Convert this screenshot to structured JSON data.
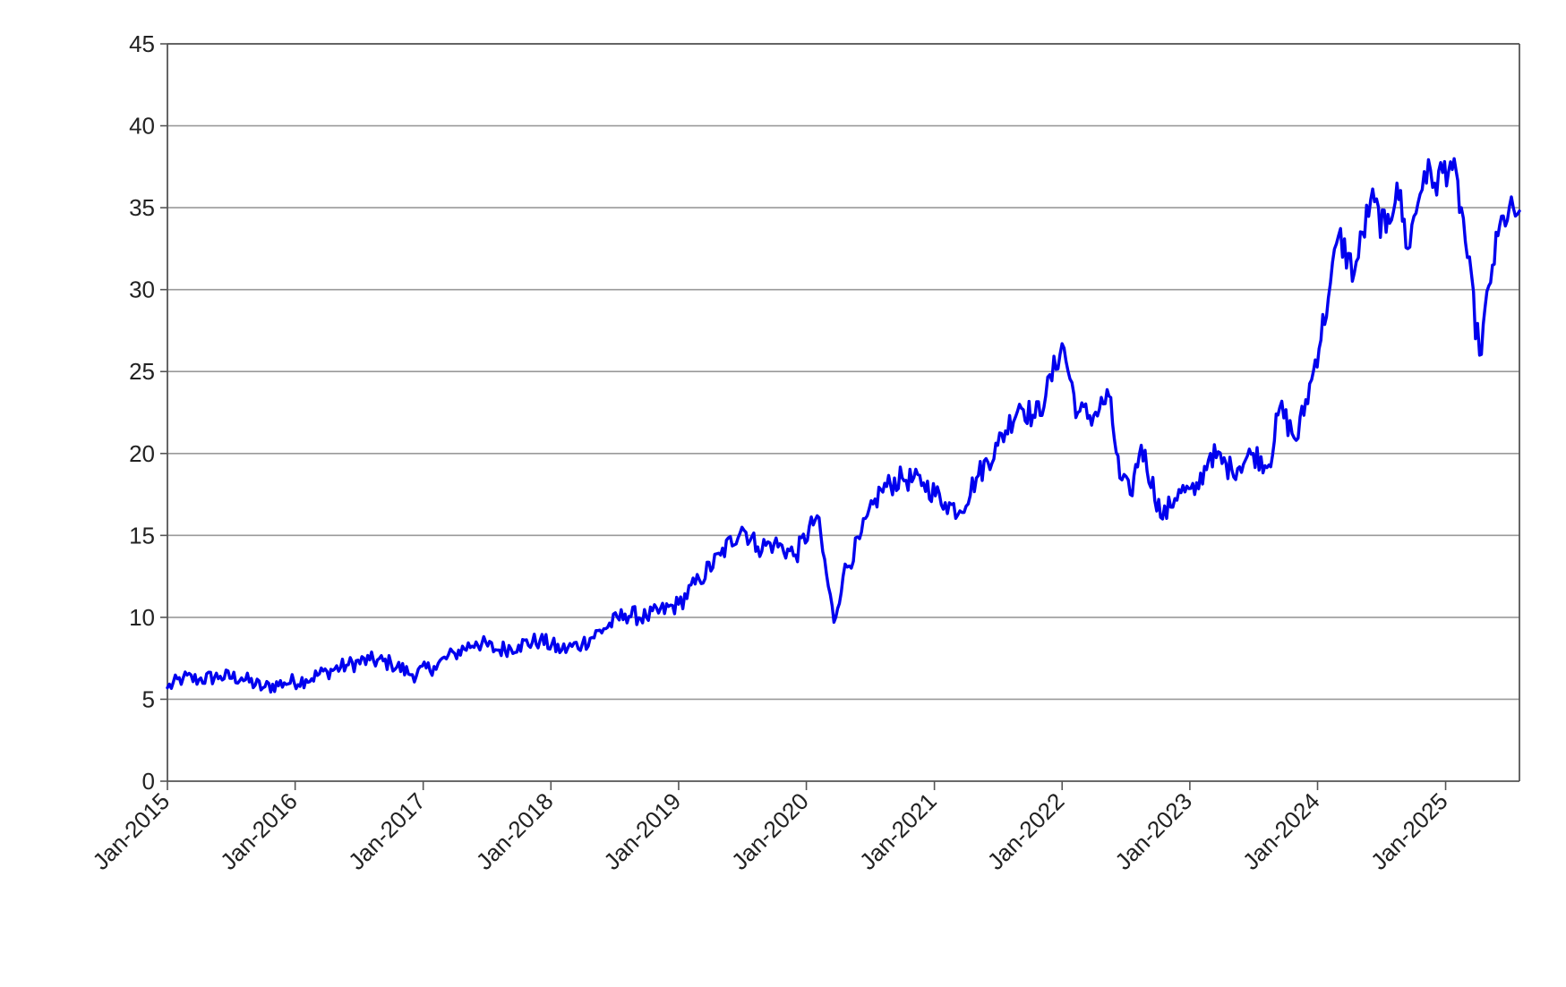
{
  "chart_data": {
    "type": "line",
    "title": "",
    "xlabel": "",
    "ylabel": "",
    "xlim": [
      "2015-01-01",
      "2025-07-31"
    ],
    "ylim": [
      0,
      45
    ],
    "yticks": [
      0,
      5,
      10,
      15,
      20,
      25,
      30,
      35,
      40,
      45
    ],
    "xticks": [
      "2015-01-01",
      "2016-01-01",
      "2017-01-01",
      "2018-01-01",
      "2019-01-01",
      "2020-01-01",
      "2021-01-01",
      "2022-01-01",
      "2023-01-01",
      "2024-01-01",
      "2025-01-01"
    ],
    "xtick_labels": [
      "Jan-2015",
      "Jan-2016",
      "Jan-2017",
      "Jan-2018",
      "Jan-2019",
      "Jan-2020",
      "Jan-2021",
      "Jan-2022",
      "Jan-2023",
      "Jan-2024",
      "Jan-2025"
    ],
    "grid": "horizontal",
    "legend": "none",
    "series": [
      {
        "color": "#0000ee",
        "points": [
          [
            "2015-01-01",
            5.7
          ],
          [
            "2015-02-15",
            6.3
          ],
          [
            "2015-04-01",
            6.2
          ],
          [
            "2015-06-01",
            6.4
          ],
          [
            "2015-08-01",
            6.3
          ],
          [
            "2015-10-01",
            5.7
          ],
          [
            "2015-12-01",
            6.0
          ],
          [
            "2016-02-01",
            6.2
          ],
          [
            "2016-04-01",
            6.7
          ],
          [
            "2016-06-01",
            7.1
          ],
          [
            "2016-08-01",
            7.4
          ],
          [
            "2016-10-01",
            7.2
          ],
          [
            "2016-12-01",
            6.5
          ],
          [
            "2017-02-01",
            7.0
          ],
          [
            "2017-04-01",
            7.8
          ],
          [
            "2017-06-01",
            8.5
          ],
          [
            "2017-08-01",
            8.0
          ],
          [
            "2017-10-01",
            8.3
          ],
          [
            "2017-12-01",
            8.6
          ],
          [
            "2018-02-01",
            8.0
          ],
          [
            "2018-04-01",
            8.4
          ],
          [
            "2018-06-01",
            9.3
          ],
          [
            "2018-08-01",
            10.2
          ],
          [
            "2018-10-01",
            10.0
          ],
          [
            "2019-01-01",
            10.8
          ],
          [
            "2019-03-01",
            12.3
          ],
          [
            "2019-05-01",
            13.8
          ],
          [
            "2019-07-01",
            15.5
          ],
          [
            "2019-08-15",
            14.3
          ],
          [
            "2019-10-01",
            14.5
          ],
          [
            "2019-12-01",
            13.8
          ],
          [
            "2020-02-01",
            16.2
          ],
          [
            "2020-03-20",
            9.7
          ],
          [
            "2020-04-15",
            12.5
          ],
          [
            "2020-06-01",
            14.8
          ],
          [
            "2020-08-01",
            17.8
          ],
          [
            "2020-10-01",
            18.5
          ],
          [
            "2020-12-01",
            18.2
          ],
          [
            "2021-02-01",
            17.0
          ],
          [
            "2021-03-15",
            16.5
          ],
          [
            "2021-05-01",
            18.5
          ],
          [
            "2021-07-01",
            20.5
          ],
          [
            "2021-09-01",
            23.0
          ],
          [
            "2021-10-15",
            22.2
          ],
          [
            "2021-11-15",
            23.5
          ],
          [
            "2022-01-01",
            26.7
          ],
          [
            "2022-02-15",
            22.5
          ],
          [
            "2022-04-01",
            22.3
          ],
          [
            "2022-05-15",
            23.5
          ],
          [
            "2022-06-15",
            18.5
          ],
          [
            "2022-07-15",
            17.5
          ],
          [
            "2022-08-15",
            20.5
          ],
          [
            "2022-10-15",
            16.0
          ],
          [
            "2022-12-01",
            17.8
          ],
          [
            "2023-01-15",
            17.5
          ],
          [
            "2023-03-01",
            20.0
          ],
          [
            "2023-05-01",
            19.0
          ],
          [
            "2023-07-01",
            20.0
          ],
          [
            "2023-08-15",
            19.3
          ],
          [
            "2023-09-15",
            22.8
          ],
          [
            "2023-11-01",
            20.8
          ],
          [
            "2023-12-15",
            24.5
          ],
          [
            "2024-02-01",
            29.5
          ],
          [
            "2024-03-01",
            33.3
          ],
          [
            "2024-04-15",
            31.0
          ],
          [
            "2024-06-01",
            35.5
          ],
          [
            "2024-07-15",
            33.5
          ],
          [
            "2024-08-15",
            36.5
          ],
          [
            "2024-09-15",
            32.5
          ],
          [
            "2024-11-01",
            37.2
          ],
          [
            "2024-12-01",
            36.5
          ],
          [
            "2025-01-15",
            37.8
          ],
          [
            "2025-02-15",
            35.0
          ],
          [
            "2025-04-08",
            26.0
          ],
          [
            "2025-05-15",
            31.5
          ],
          [
            "2025-06-15",
            34.5
          ],
          [
            "2025-07-31",
            34.8
          ]
        ]
      }
    ]
  }
}
